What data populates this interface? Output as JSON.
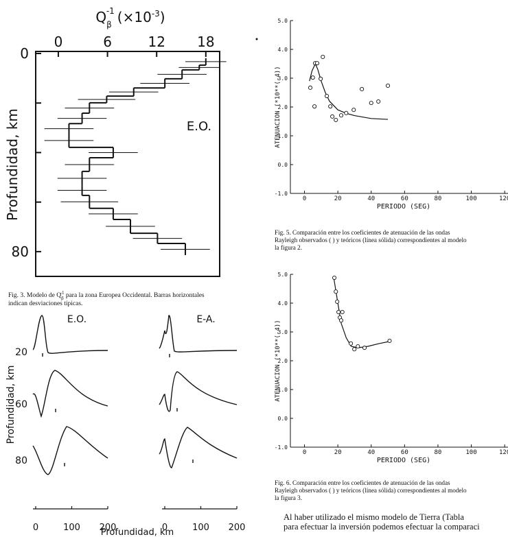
{
  "chart_data": [
    {
      "type": "step",
      "x_label_parts": [
        "Q",
        "β",
        "-1",
        "(×10",
        "-3",
        ")"
      ],
      "y_label": "Profundidad, km",
      "annotation": "E.O.",
      "xlim": [
        -2.76,
        19.69
      ],
      "xticks": [
        0,
        6,
        12,
        18
      ],
      "ylim": [
        0,
        90
      ],
      "yticks": [
        0,
        80
      ],
      "y_minor_ticks": [
        20,
        40,
        60
      ],
      "depth_edges": [
        1.9,
        4.7,
        6.6,
        10.2,
        13.9,
        17.2,
        19.9,
        24.1,
        28.3,
        32.4,
        37.9,
        42.1,
        47.6,
        53.2,
        57.3,
        62.5,
        67,
        72.6,
        76.7,
        81.4
      ],
      "values": [
        18.0,
        17.2,
        15.1,
        13.0,
        9.2,
        5.9,
        3.8,
        2.9,
        1.3,
        1.3,
        6.7,
        3.8,
        2.9,
        2.9,
        3.8,
        6.7,
        8.8,
        12.1,
        15.5
      ],
      "errors": [
        2.5,
        2.5,
        3,
        3,
        3,
        3.5,
        3,
        3,
        3,
        3,
        3,
        3,
        3,
        3,
        3.5,
        3,
        3,
        3,
        3
      ],
      "caption_parts": [
        "Fig. 3.  Modelo de Q",
        "β",
        "-1",
        " para la zona Europea Occidental. Barras horizontales"
      ],
      "caption_line2": "indican desviaciones típicas."
    },
    {
      "type": "kernels",
      "columns": [
        "E.O.",
        "E-A."
      ],
      "row_labels": [
        20,
        60,
        80
      ],
      "xlim": [
        0,
        200
      ],
      "xticks": [
        0,
        100,
        200
      ],
      "x_label": "Profundidad, km",
      "y_label": "Profundidad, km"
    },
    {
      "type": "scatter-curve",
      "x_label": "PERIODO (SEG)",
      "y_label": "ATENUACION (*10**(-4))",
      "xlim": [
        -8.45,
        122
      ],
      "xticks": [
        0,
        20,
        40,
        60,
        80,
        100,
        120
      ],
      "ylim": [
        -1,
        5
      ],
      "yticks": [
        {
          "value": -1,
          "label": "-1.0"
        },
        {
          "value": 0,
          "label": "0.0"
        },
        {
          "value": 1,
          "label": "1.0"
        },
        {
          "value": 2,
          "label": "2.0"
        },
        {
          "value": 3,
          "label": "3.0"
        },
        {
          "value": 4,
          "label": "4.0"
        },
        {
          "value": 5,
          "label": "5.0"
        }
      ],
      "points": {
        "x": [
          3.5,
          5,
          6.4,
          7.6,
          6,
          9.7,
          11,
          13.4,
          15.5,
          16.7,
          18.8,
          22,
          25,
          29.5,
          34.4,
          40,
          44.3,
          50
        ],
        "y": [
          2.67,
          3.02,
          3.52,
          3.52,
          2.02,
          2.98,
          3.74,
          2.38,
          2.02,
          1.67,
          1.55,
          1.71,
          1.79,
          1.9,
          2.62,
          2.14,
          2.19,
          2.74
        ]
      },
      "curve": {
        "x": [
          3,
          4.5,
          6.5,
          8,
          10,
          12.5,
          15,
          20,
          25,
          30,
          40,
          50
        ],
        "y": [
          2.9,
          3.25,
          3.5,
          3.3,
          2.9,
          2.5,
          2.2,
          1.9,
          1.78,
          1.7,
          1.6,
          1.57
        ]
      },
      "caption_lines": [
        "Fig. 5.  Comparación entre los coeficientes de atenuación de las ondas",
        "Rayleigh observados (   ) y teóricos (línea sólida) correspondientes al modelo",
        "la figura 2."
      ]
    },
    {
      "type": "scatter-curve",
      "x_label": "PERIODO (SEG)",
      "y_label": "ATENUACION (*10**(-4))",
      "xlim": [
        -8.45,
        122
      ],
      "xticks": [
        0,
        20,
        40,
        60,
        80,
        100,
        120
      ],
      "ylim": [
        -1,
        5
      ],
      "yticks": [
        {
          "value": -1,
          "label": "-1.0"
        },
        {
          "value": 0,
          "label": "0.0"
        },
        {
          "value": 1,
          "label": "1.0"
        },
        {
          "value": 2,
          "label": "2.0"
        },
        {
          "value": 3,
          "label": "3.0"
        },
        {
          "value": 4,
          "label": "4.0"
        },
        {
          "value": 5,
          "label": "5.0"
        }
      ],
      "points": {
        "x": [
          17.9,
          18.8,
          19.6,
          20.4,
          21.2,
          22,
          22.7,
          27.8,
          29.9,
          32,
          36,
          51
        ],
        "y": [
          4.88,
          4.4,
          4.05,
          3.69,
          3.5,
          3.4,
          3.69,
          2.6,
          2.4,
          2.5,
          2.45,
          2.69
        ]
      },
      "curve": {
        "x": [
          17.5,
          20,
          22,
          25,
          28,
          32,
          38,
          45,
          51
        ],
        "y": [
          4.9,
          4.0,
          3.3,
          2.8,
          2.5,
          2.45,
          2.5,
          2.6,
          2.67
        ]
      },
      "caption_lines": [
        "Fig. 6.  Comparación entre los coeficientes de atenuación de las ondas",
        "Rayleigh observados (   ) y teóricos (línea sólida) correspondientes al modelo",
        "la figura 3."
      ]
    }
  ],
  "body_text": [
    "Al haber utilizado el mismo modelo de Tierra (Tabla",
    "para efectuar la inversión podemos efectuar la comparaci"
  ]
}
